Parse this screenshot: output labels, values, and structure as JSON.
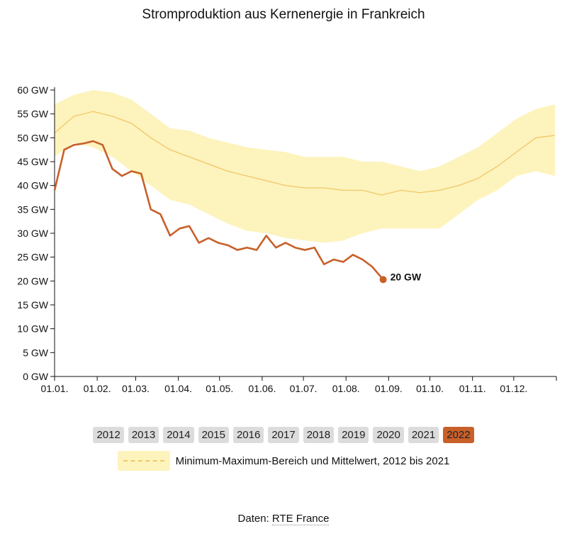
{
  "title": "Stromproduktion aus Kernenergie in Frankreich",
  "chart_data": {
    "type": "line",
    "title": "Stromproduktion aus Kernenergie in Frankreich",
    "ylim": [
      0,
      60
    ],
    "y_ticks": [
      "0 GW",
      "5 GW",
      "10 GW",
      "15 GW",
      "20 GW",
      "25 GW",
      "30 GW",
      "35 GW",
      "40 GW",
      "45 GW",
      "50 GW",
      "55 GW",
      "60 GW"
    ],
    "x_ticks": [
      "01.01.",
      "01.02.",
      "01.03.",
      "01.04.",
      "01.05.",
      "01.06.",
      "01.07.",
      "01.08.",
      "01.09.",
      "01.10.",
      "01.11.",
      "01.12."
    ],
    "grid": false,
    "colors": {
      "current": "#c8602a",
      "band": "#fdf3bd",
      "mean": "#f0c765"
    },
    "band": {
      "name": "Minimum-Maximum-Bereich und Mittelwert, 2012 bis 2021",
      "x": [
        "01.01.",
        "15.01.",
        "29.01.",
        "12.02.",
        "26.02.",
        "12.03.",
        "26.03.",
        "09.04.",
        "23.04.",
        "07.05.",
        "21.05.",
        "04.06.",
        "18.06.",
        "02.07.",
        "16.07.",
        "30.07.",
        "13.08.",
        "27.08.",
        "10.09.",
        "24.09.",
        "08.10.",
        "22.10.",
        "05.11.",
        "19.11.",
        "03.12.",
        "17.12.",
        "31.12."
      ],
      "max": [
        57,
        59,
        60,
        59.5,
        58,
        55,
        52,
        51.5,
        50,
        49,
        48,
        47.5,
        47,
        46,
        46,
        46,
        45,
        45,
        44,
        43,
        44,
        46,
        48,
        51,
        54,
        56,
        57
      ],
      "mean": [
        51,
        54.5,
        55.5,
        54.5,
        53,
        50,
        47.5,
        46,
        44.5,
        43,
        42,
        41,
        40,
        39.5,
        39.5,
        39,
        39,
        38,
        39,
        38.5,
        39,
        40,
        41.5,
        44,
        47,
        50,
        50.5
      ],
      "min": [
        46,
        49,
        48,
        46,
        43,
        40,
        37,
        36,
        34,
        32,
        30.5,
        30,
        29,
        28.5,
        28,
        28.5,
        30,
        31,
        31,
        31,
        31,
        34,
        37,
        39,
        42,
        43,
        42
      ]
    },
    "series": [
      {
        "name": "2022",
        "x": [
          "01.01.",
          "08.01.",
          "15.01.",
          "22.01.",
          "29.01.",
          "05.02.",
          "12.02.",
          "19.02.",
          "26.02.",
          "05.03.",
          "12.03.",
          "19.03.",
          "26.03.",
          "02.04.",
          "09.04.",
          "16.04.",
          "23.04.",
          "30.04.",
          "07.05.",
          "14.05.",
          "21.05.",
          "28.05.",
          "04.06.",
          "11.06.",
          "18.06.",
          "25.06.",
          "02.07.",
          "09.07.",
          "16.07.",
          "23.07.",
          "30.07.",
          "06.08.",
          "13.08.",
          "20.08.",
          "28.08."
        ],
        "values": [
          39,
          47.5,
          48.5,
          48.8,
          49.3,
          48.5,
          43.5,
          42,
          43,
          42.5,
          35,
          34,
          29.5,
          31,
          31.5,
          28,
          29,
          28,
          27.5,
          26.5,
          27,
          26.5,
          29.5,
          27,
          28,
          27,
          26.5,
          27,
          23.5,
          24.5,
          24,
          25.5,
          24.5,
          23,
          20.3
        ]
      }
    ],
    "end_label": "20 GW"
  },
  "years": [
    "2012",
    "2013",
    "2014",
    "2015",
    "2016",
    "2017",
    "2018",
    "2019",
    "2020",
    "2021",
    "2022"
  ],
  "active_year": "2022",
  "legend_label": "Minimum-Maximum-Bereich und Mittelwert, 2012 bis 2021",
  "source": {
    "prefix": "Daten:",
    "link": "RTE France"
  }
}
